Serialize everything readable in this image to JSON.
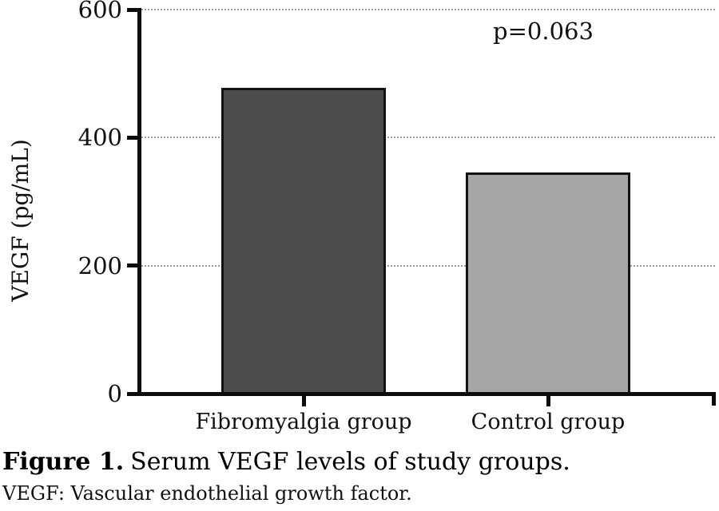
{
  "figure": {
    "caption_label": "Figure 1.",
    "caption_text": "Serum VEGF levels of study groups.",
    "footnote": "VEGF: Vascular endothelial growth factor."
  },
  "chart_data": {
    "type": "bar",
    "categories": [
      "Fibromyalgia group",
      "Control group"
    ],
    "values": [
      478,
      345
    ],
    "units": "pg/mL",
    "title": "",
    "xlabel": "",
    "ylabel": "VEGF (pg/mL)",
    "ylim": [
      0,
      600
    ],
    "yticks": [
      0,
      200,
      400,
      600
    ],
    "grid": "horizontal dotted lines at 200, 400, 600",
    "legend": "none",
    "annotation": "p=0.063",
    "bar_colors": [
      "#4d4d4d",
      "#a6a6a6"
    ],
    "bar_border_color": "#121212"
  }
}
